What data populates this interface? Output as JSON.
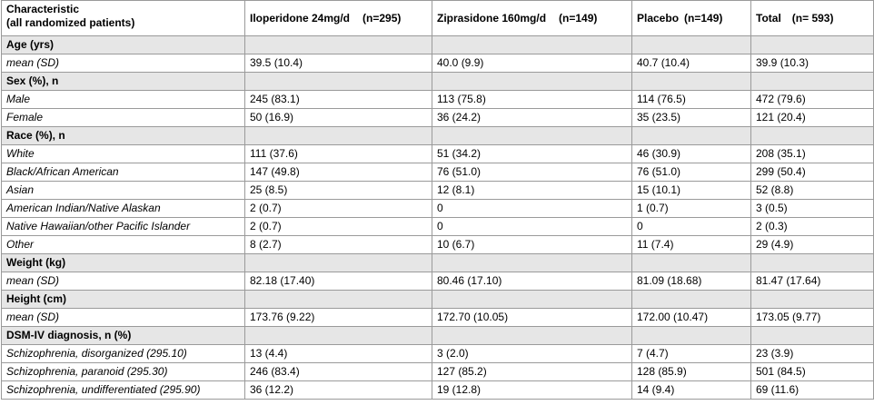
{
  "header": {
    "characteristic": "Characteristic",
    "characteristic_sub": "(all randomized patients)",
    "iloperidone": "Iloperidone 24mg/d",
    "iloperidone_n": "(n=295)",
    "ziprasidone": "Ziprasidone 160mg/d",
    "ziprasidone_n": "(n=149)",
    "placebo": "Placebo",
    "placebo_n": "(n=149)",
    "total": "Total",
    "total_n": "(n= 593)"
  },
  "rows": [
    {
      "type": "section",
      "label": "Age (yrs)"
    },
    {
      "type": "data",
      "label": "mean (SD)",
      "values": [
        "39.5 (10.4)",
        "40.0 (9.9)",
        "40.7 (10.4)",
        "39.9 (10.3)"
      ]
    },
    {
      "type": "section",
      "label": "Sex (%), n"
    },
    {
      "type": "data",
      "label": "Male",
      "values": [
        "245 (83.1)",
        "113 (75.8)",
        "114 (76.5)",
        "472 (79.6)"
      ]
    },
    {
      "type": "data",
      "label": "Female",
      "values": [
        "50 (16.9)",
        "36 (24.2)",
        "35 (23.5)",
        "121 (20.4)"
      ]
    },
    {
      "type": "section",
      "label": "Race (%), n"
    },
    {
      "type": "data",
      "label": "White",
      "values": [
        "111 (37.6)",
        "51 (34.2)",
        "46 (30.9)",
        "208 (35.1)"
      ]
    },
    {
      "type": "data",
      "label": "Black/African American",
      "values": [
        "147 (49.8)",
        "76 (51.0)",
        "76 (51.0)",
        "299 (50.4)"
      ]
    },
    {
      "type": "data",
      "label": "Asian",
      "values": [
        "25 (8.5)",
        "12 (8.1)",
        "15 (10.1)",
        "52 (8.8)"
      ]
    },
    {
      "type": "data",
      "label": "American Indian/Native Alaskan",
      "values": [
        "2 (0.7)",
        "0",
        "1 (0.7)",
        "3 (0.5)"
      ]
    },
    {
      "type": "data",
      "label": "Native Hawaiian/other Pacific Islander",
      "values": [
        "2 (0.7)",
        "0",
        "0",
        "2 (0.3)"
      ]
    },
    {
      "type": "data",
      "label": "Other",
      "values": [
        "8 (2.7)",
        "10 (6.7)",
        "11 (7.4)",
        "29 (4.9)"
      ]
    },
    {
      "type": "section",
      "label": "Weight (kg)"
    },
    {
      "type": "data",
      "label": "mean (SD)",
      "values": [
        "82.18 (17.40)",
        "80.46 (17.10)",
        "81.09 (18.68)",
        "81.47 (17.64)"
      ]
    },
    {
      "type": "section",
      "label": "Height (cm)"
    },
    {
      "type": "data",
      "label": "mean (SD)",
      "values": [
        "173.76 (9.22)",
        "172.70 (10.05)",
        "172.00 (10.47)",
        "173.05 (9.77)"
      ]
    },
    {
      "type": "section",
      "label": "DSM-IV diagnosis, n (%)"
    },
    {
      "type": "data",
      "label": "Schizophrenia, disorganized (295.10)",
      "values": [
        "13 (4.4)",
        "3 (2.0)",
        "7 (4.7)",
        "23 (3.9)"
      ]
    },
    {
      "type": "data",
      "label": "Schizophrenia, paranoid (295.30)",
      "values": [
        "246 (83.4)",
        "127 (85.2)",
        "128 (85.9)",
        "501 (84.5)"
      ]
    },
    {
      "type": "data",
      "label": "Schizophrenia, undifferentiated (295.90)",
      "values": [
        "36 (12.2)",
        "19 (12.8)",
        "14 (9.4)",
        "69 (11.6)"
      ]
    }
  ]
}
